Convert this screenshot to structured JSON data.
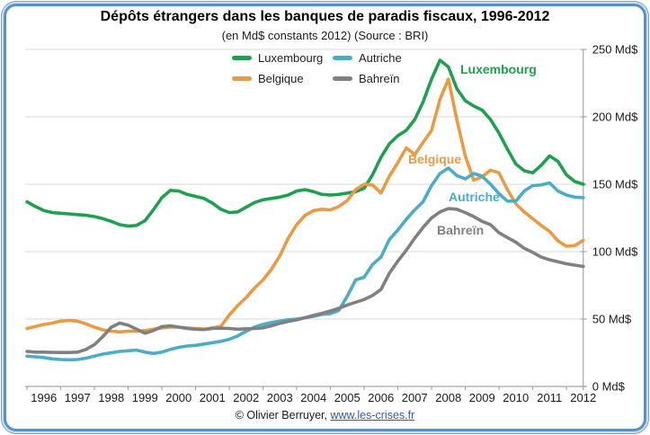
{
  "header": {
    "title": "Dépôts étrangers dans les banques de paradis fiscaux, 1996-2012",
    "subtitle": "(en Md$ constants 2012) (Source : BRI)"
  },
  "footer": {
    "credit": "© Olivier Berruyer,",
    "link_text": "www.les-crises.fr"
  },
  "legend": {
    "items": [
      {
        "label": "Luxembourg",
        "color": "#1EA04F"
      },
      {
        "label": "Autriche",
        "color": "#4BACC6"
      },
      {
        "label": "Belgique",
        "color": "#EB9A44"
      },
      {
        "label": "Bahreïn",
        "color": "#808080"
      }
    ]
  },
  "chart_data": {
    "type": "line",
    "title": "Dépôts étrangers dans les banques de paradis fiscaux, 1996-2012",
    "subtitle": "(en Md$ constants 2012) (Source : BRI)",
    "unit": "Md$",
    "x_start": 1996,
    "x_step": 0.25,
    "x_tick_labels": [
      "1996",
      "1997",
      "1998",
      "1999",
      "2000",
      "2001",
      "2002",
      "2003",
      "2004",
      "2005",
      "2006",
      "2007",
      "2008",
      "2009",
      "2010",
      "2011",
      "2012"
    ],
    "y_ticks": [
      0,
      50,
      100,
      150,
      200,
      250
    ],
    "y_tick_labels": [
      "0 Md$",
      "50 Md$",
      "100 Md$",
      "150 Md$",
      "200 Md$",
      "250 Md$"
    ],
    "ylim": [
      0,
      250
    ],
    "grid": true,
    "legend_position": "top-center",
    "colors": {
      "grid": "#D9D9D9",
      "axis": "#A6A6A6",
      "tick_text": "#1a1a1a"
    },
    "series": [
      {
        "name": "Luxembourg",
        "color": "#1EA04F",
        "values": [
          137,
          133.5,
          130.5,
          129,
          128.5,
          128,
          127.5,
          127,
          126,
          124.5,
          122.5,
          120,
          119,
          119.5,
          123,
          131,
          140,
          145.5,
          145,
          142.5,
          141,
          139.5,
          136,
          131.5,
          129,
          129.5,
          133,
          136.5,
          138.5,
          139.5,
          140.5,
          142,
          145,
          146,
          144.5,
          142.5,
          142,
          142.5,
          143.5,
          144.5,
          147,
          157,
          170,
          180,
          186,
          190,
          198,
          211,
          228,
          242,
          237,
          221,
          212,
          208,
          205,
          198,
          188,
          176,
          165,
          160,
          158.5,
          164,
          171,
          167,
          157,
          152,
          150
        ]
      },
      {
        "name": "Belgique",
        "color": "#EB9A44",
        "values": [
          43,
          44.5,
          46,
          47,
          48.5,
          49,
          48.5,
          46.5,
          44,
          42,
          41,
          40.5,
          41,
          41,
          41.5,
          42.5,
          43.5,
          44,
          44,
          43.5,
          43,
          42.5,
          43.5,
          44.5,
          53,
          60,
          66,
          73,
          79,
          87,
          97,
          110,
          120,
          127,
          130.5,
          131.5,
          131,
          133.5,
          138,
          146,
          150,
          149.5,
          143.5,
          156,
          166,
          177,
          172,
          181,
          190,
          213,
          228,
          198,
          171,
          153,
          155.5,
          160.5,
          158.5,
          146,
          135.5,
          129.5,
          124.5,
          119.5,
          115,
          108,
          104,
          104.5,
          108.5
        ]
      },
      {
        "name": "Autriche",
        "color": "#4BACC6",
        "values": [
          22.5,
          22,
          21.5,
          20.5,
          20,
          19.8,
          20,
          21,
          22.5,
          24,
          25,
          26,
          26.5,
          27,
          25.5,
          24.5,
          25.5,
          27.5,
          29,
          30,
          30.5,
          31.5,
          32.5,
          33.5,
          35,
          37.5,
          41,
          44,
          46,
          47.5,
          48.5,
          49.5,
          50,
          51,
          52,
          53.5,
          54,
          56.5,
          67,
          79,
          81,
          90.5,
          96,
          109,
          116,
          124,
          131,
          137,
          149,
          158,
          162,
          156.5,
          154,
          158,
          156,
          150,
          143,
          137.5,
          137.5,
          145,
          149,
          149.5,
          151,
          145,
          142,
          140.5,
          140
        ]
      },
      {
        "name": "Bahreïn",
        "color": "#808080",
        "values": [
          26,
          25.5,
          25.5,
          25.3,
          25.2,
          25.2,
          25.5,
          27.5,
          31,
          37,
          44,
          47,
          45.5,
          42.5,
          39.5,
          41.5,
          44.4,
          45,
          44,
          43,
          42.5,
          42.2,
          43,
          43.3,
          43,
          42.5,
          42.8,
          43,
          43.5,
          45,
          46.8,
          48.3,
          49.4,
          51,
          52.7,
          54.3,
          56,
          58,
          60.5,
          62.5,
          64.5,
          67.5,
          72,
          84,
          93,
          101,
          110,
          118,
          125,
          129.5,
          132,
          131.5,
          129,
          126,
          122.5,
          120,
          114,
          110.5,
          107,
          102.5,
          99.5,
          96,
          94,
          92.5,
          91,
          90,
          89
        ]
      }
    ],
    "annotations": [
      {
        "text": "Luxembourg",
        "color": "#1EA04F"
      },
      {
        "text": "Belgique",
        "color": "#EB9A44"
      },
      {
        "text": "Autriche",
        "color": "#4BACC6"
      },
      {
        "text": "Bahreïn",
        "color": "#808080"
      }
    ]
  }
}
